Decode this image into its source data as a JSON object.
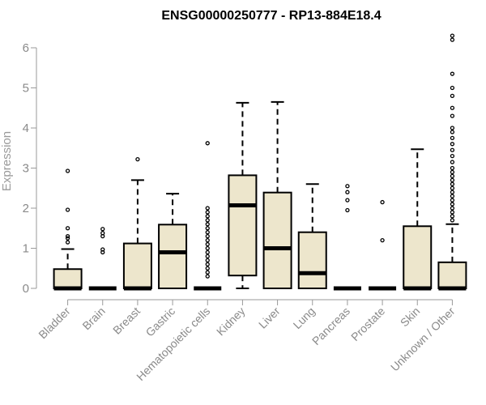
{
  "chart_data": {
    "type": "box",
    "title": "ENSG00000250777 - RP13-884E18.4",
    "xlabel": "",
    "ylabel": "Expression",
    "ylim": [
      0,
      6.4
    ],
    "yticks": [
      0,
      1,
      2,
      3,
      4,
      5,
      6
    ],
    "box_fill": "#ede6cc",
    "categories": [
      "Bladder",
      "Brain",
      "Breast",
      "Gastric",
      "Hematopoietic cells",
      "Kidney",
      "Liver",
      "Lung",
      "Pancreas",
      "Prostate",
      "Skin",
      "Unknown / Other"
    ],
    "boxes": [
      {
        "min": 0,
        "q1": 0,
        "median": 0,
        "q3": 0.48,
        "max": 0.98,
        "outliers": [
          1.15,
          1.25,
          1.3,
          1.5,
          1.96,
          2.93
        ]
      },
      {
        "min": 0,
        "q1": 0,
        "median": 0,
        "q3": 0,
        "max": 0,
        "outliers": [
          0.9,
          0.97,
          1.3,
          1.38,
          1.48
        ]
      },
      {
        "min": 0,
        "q1": 0,
        "median": 0,
        "q3": 1.12,
        "max": 2.7,
        "outliers": [
          3.22
        ]
      },
      {
        "min": 0,
        "q1": 0,
        "median": 0.9,
        "q3": 1.59,
        "max": 2.36,
        "outliers": []
      },
      {
        "min": 0,
        "q1": 0,
        "median": 0,
        "q3": 0,
        "max": 0,
        "outliers": [
          0.3,
          0.4,
          0.5,
          0.6,
          0.7,
          0.8,
          0.9,
          1.0,
          1.1,
          1.2,
          1.3,
          1.4,
          1.5,
          1.6,
          1.7,
          1.8,
          1.9,
          2.0,
          3.62
        ]
      },
      {
        "min": 0,
        "q1": 0.32,
        "median": 2.07,
        "q3": 2.82,
        "max": 4.63,
        "outliers": []
      },
      {
        "min": 0,
        "q1": 0,
        "median": 1.0,
        "q3": 2.39,
        "max": 4.65,
        "outliers": []
      },
      {
        "min": 0,
        "q1": 0,
        "median": 0.38,
        "q3": 1.4,
        "max": 2.6,
        "outliers": []
      },
      {
        "min": 0,
        "q1": 0,
        "median": 0,
        "q3": 0,
        "max": 0,
        "outliers": [
          1.95,
          2.2,
          2.4,
          2.55
        ]
      },
      {
        "min": 0,
        "q1": 0,
        "median": 0,
        "q3": 0,
        "max": 0,
        "outliers": [
          1.2,
          2.15
        ]
      },
      {
        "min": 0,
        "q1": 0,
        "median": 0,
        "q3": 1.55,
        "max": 3.47,
        "outliers": []
      },
      {
        "min": 0,
        "q1": 0,
        "median": 0,
        "q3": 0.65,
        "max": 1.6,
        "outliers": [
          1.7,
          1.8,
          1.9,
          2.0,
          2.1,
          2.2,
          2.3,
          2.4,
          2.5,
          2.6,
          2.7,
          2.8,
          2.9,
          3.0,
          3.15,
          3.3,
          3.45,
          3.6,
          3.75,
          3.9,
          4.0,
          4.3,
          4.5,
          4.8,
          5.0,
          5.35,
          6.2,
          6.3
        ]
      }
    ]
  }
}
